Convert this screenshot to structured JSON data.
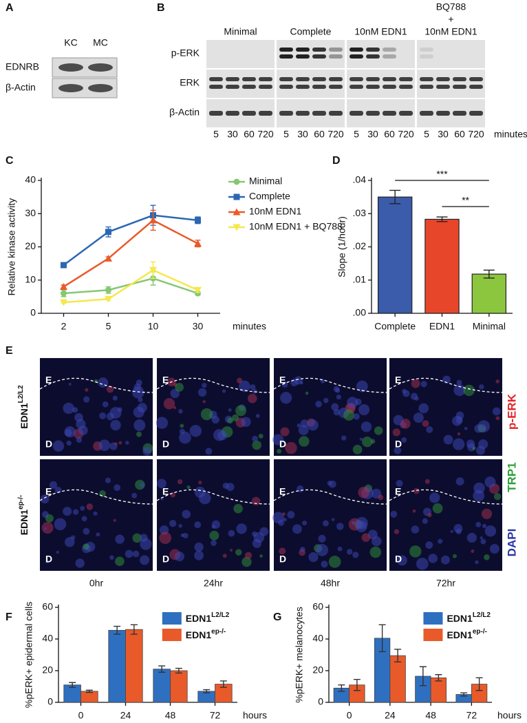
{
  "panel_A": {
    "label": "A",
    "columns": [
      "KC",
      "MC"
    ],
    "rows": [
      "EDNRB",
      "β-Actin"
    ]
  },
  "panel_B": {
    "label": "B",
    "groups": [
      [
        "Minimal"
      ],
      [
        "Complete"
      ],
      [
        "10nM EDN1"
      ],
      [
        "BQ788",
        "+",
        "10nM EDN1"
      ]
    ],
    "rows": [
      "p-ERK",
      "ERK",
      "β-Actin"
    ],
    "times": [
      "5",
      "30",
      "60",
      "720"
    ],
    "time_unit": "minutes"
  },
  "panel_E": {
    "label": "E",
    "rows": [
      {
        "base": "EDN1",
        "sup": "L2/L2"
      },
      {
        "base": "EDN1",
        "sup": "ep-/-"
      }
    ],
    "columns": [
      "0hr",
      "24hr",
      "48hr",
      "72hr"
    ],
    "layers": [
      "E",
      "D"
    ],
    "stains": [
      {
        "text": "p-ERK",
        "color": "#e3262b"
      },
      {
        "text": "TRP1",
        "color": "#2e9e3a"
      },
      {
        "text": "DAPI",
        "color": "#2a34a8"
      }
    ]
  },
  "chart_data": [
    {
      "type": "line",
      "panel_label": "C",
      "ylabel": "Relative kinase activity",
      "xlabel": "minutes",
      "categories": [
        "2",
        "5",
        "10",
        "30"
      ],
      "ylim": [
        0,
        40
      ],
      "yticks": [
        0,
        10,
        20,
        30,
        40
      ],
      "series": [
        {
          "name": "Minimal",
          "color": "#86c773",
          "marker": "circle",
          "values": [
            6,
            7,
            10.5,
            6
          ],
          "errors": [
            1,
            1,
            2,
            0.5
          ]
        },
        {
          "name": "Complete",
          "color": "#2c67b1",
          "marker": "square",
          "values": [
            14.5,
            24.5,
            29.5,
            28
          ],
          "errors": [
            0.5,
            1.5,
            3,
            1
          ]
        },
        {
          "name": "10nM EDN1",
          "color": "#ea5a2a",
          "marker": "triangle-up",
          "values": [
            8,
            16.5,
            28,
            21
          ],
          "errors": [
            0.5,
            0.5,
            3,
            1
          ]
        },
        {
          "name": "10nM EDN1 + BQ788",
          "color": "#f4e84c",
          "marker": "triangle-down",
          "values": [
            3.3,
            4.3,
            13,
            7
          ],
          "errors": [
            0.3,
            0.3,
            2.5,
            0.7
          ]
        }
      ]
    },
    {
      "type": "bar",
      "panel_label": "D",
      "ylabel": "Slope (1/hour)",
      "categories": [
        "Complete",
        "EDN1",
        "Minimal"
      ],
      "values": [
        0.035,
        0.0283,
        0.0118
      ],
      "errors": [
        0.002,
        0.0007,
        0.0012
      ],
      "colors": [
        "#3b5bab",
        "#e8462b",
        "#8cc63f"
      ],
      "ylim": [
        0,
        0.04
      ],
      "yticks": [
        {
          "value": 0,
          "label": ".00"
        },
        {
          "value": 0.01,
          "label": ".01"
        },
        {
          "value": 0.02,
          "label": ".02"
        },
        {
          "value": 0.03,
          "label": ".03"
        },
        {
          "value": 0.04,
          "label": ".04"
        }
      ],
      "annotations": [
        "***",
        "**"
      ]
    },
    {
      "type": "grouped_bar",
      "panel_label": "F",
      "ylabel": "%pERK+ epidermal cells",
      "xlabel": "hours",
      "categories": [
        "0",
        "24",
        "48",
        "72"
      ],
      "ylim": [
        0,
        60
      ],
      "yticks": [
        0,
        20,
        40,
        60
      ],
      "series": [
        {
          "name": "EDN1",
          "name_sup": "L2/L2",
          "color": "#2f6fc0",
          "values": [
            11,
            45.5,
            21,
            7
          ],
          "errors": [
            1.5,
            2.5,
            2,
            1
          ]
        },
        {
          "name": "EDN1",
          "name_sup": "ep-/-",
          "color": "#e85a2a",
          "values": [
            7,
            46,
            20,
            11.5
          ],
          "errors": [
            0.7,
            3,
            1.5,
            2
          ]
        }
      ]
    },
    {
      "type": "grouped_bar",
      "panel_label": "G",
      "ylabel": "%pERK+ melanocytes",
      "xlabel": "hours",
      "categories": [
        "0",
        "24",
        "48",
        "72"
      ],
      "ylim": [
        0,
        60
      ],
      "yticks": [
        0,
        20,
        40,
        60
      ],
      "series": [
        {
          "name": "EDN1",
          "name_sup": "L2/L2",
          "color": "#2f6fc0",
          "values": [
            9,
            40.5,
            16.5,
            5
          ],
          "errors": [
            2,
            8.5,
            6,
            1
          ]
        },
        {
          "name": "EDN1",
          "name_sup": "ep-/-",
          "color": "#e85a2a",
          "values": [
            11,
            29.5,
            15.5,
            11.5
          ],
          "errors": [
            3.5,
            4,
            2,
            4
          ]
        }
      ]
    }
  ]
}
